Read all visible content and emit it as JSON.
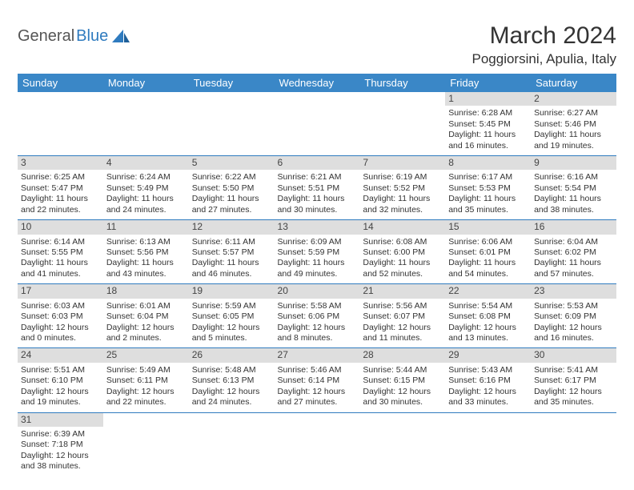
{
  "brand": {
    "general": "General",
    "blue": "Blue"
  },
  "title": "March 2024",
  "location": "Poggiorsini, Apulia, Italy",
  "colors": {
    "header_bg": "#3a87c7",
    "rule": "#2f7bbf",
    "daynum_bg": "#dedede",
    "text": "#333333",
    "logo_blue": "#2f7bbf",
    "logo_grey": "#555555"
  },
  "weekdays": [
    "Sunday",
    "Monday",
    "Tuesday",
    "Wednesday",
    "Thursday",
    "Friday",
    "Saturday"
  ],
  "weeks": [
    [
      null,
      null,
      null,
      null,
      null,
      {
        "n": "1",
        "sunrise": "6:28 AM",
        "sunset": "5:45 PM",
        "daylight": "11 hours and 16 minutes."
      },
      {
        "n": "2",
        "sunrise": "6:27 AM",
        "sunset": "5:46 PM",
        "daylight": "11 hours and 19 minutes."
      }
    ],
    [
      {
        "n": "3",
        "sunrise": "6:25 AM",
        "sunset": "5:47 PM",
        "daylight": "11 hours and 22 minutes."
      },
      {
        "n": "4",
        "sunrise": "6:24 AM",
        "sunset": "5:49 PM",
        "daylight": "11 hours and 24 minutes."
      },
      {
        "n": "5",
        "sunrise": "6:22 AM",
        "sunset": "5:50 PM",
        "daylight": "11 hours and 27 minutes."
      },
      {
        "n": "6",
        "sunrise": "6:21 AM",
        "sunset": "5:51 PM",
        "daylight": "11 hours and 30 minutes."
      },
      {
        "n": "7",
        "sunrise": "6:19 AM",
        "sunset": "5:52 PM",
        "daylight": "11 hours and 32 minutes."
      },
      {
        "n": "8",
        "sunrise": "6:17 AM",
        "sunset": "5:53 PM",
        "daylight": "11 hours and 35 minutes."
      },
      {
        "n": "9",
        "sunrise": "6:16 AM",
        "sunset": "5:54 PM",
        "daylight": "11 hours and 38 minutes."
      }
    ],
    [
      {
        "n": "10",
        "sunrise": "6:14 AM",
        "sunset": "5:55 PM",
        "daylight": "11 hours and 41 minutes."
      },
      {
        "n": "11",
        "sunrise": "6:13 AM",
        "sunset": "5:56 PM",
        "daylight": "11 hours and 43 minutes."
      },
      {
        "n": "12",
        "sunrise": "6:11 AM",
        "sunset": "5:57 PM",
        "daylight": "11 hours and 46 minutes."
      },
      {
        "n": "13",
        "sunrise": "6:09 AM",
        "sunset": "5:59 PM",
        "daylight": "11 hours and 49 minutes."
      },
      {
        "n": "14",
        "sunrise": "6:08 AM",
        "sunset": "6:00 PM",
        "daylight": "11 hours and 52 minutes."
      },
      {
        "n": "15",
        "sunrise": "6:06 AM",
        "sunset": "6:01 PM",
        "daylight": "11 hours and 54 minutes."
      },
      {
        "n": "16",
        "sunrise": "6:04 AM",
        "sunset": "6:02 PM",
        "daylight": "11 hours and 57 minutes."
      }
    ],
    [
      {
        "n": "17",
        "sunrise": "6:03 AM",
        "sunset": "6:03 PM",
        "daylight": "12 hours and 0 minutes."
      },
      {
        "n": "18",
        "sunrise": "6:01 AM",
        "sunset": "6:04 PM",
        "daylight": "12 hours and 2 minutes."
      },
      {
        "n": "19",
        "sunrise": "5:59 AM",
        "sunset": "6:05 PM",
        "daylight": "12 hours and 5 minutes."
      },
      {
        "n": "20",
        "sunrise": "5:58 AM",
        "sunset": "6:06 PM",
        "daylight": "12 hours and 8 minutes."
      },
      {
        "n": "21",
        "sunrise": "5:56 AM",
        "sunset": "6:07 PM",
        "daylight": "12 hours and 11 minutes."
      },
      {
        "n": "22",
        "sunrise": "5:54 AM",
        "sunset": "6:08 PM",
        "daylight": "12 hours and 13 minutes."
      },
      {
        "n": "23",
        "sunrise": "5:53 AM",
        "sunset": "6:09 PM",
        "daylight": "12 hours and 16 minutes."
      }
    ],
    [
      {
        "n": "24",
        "sunrise": "5:51 AM",
        "sunset": "6:10 PM",
        "daylight": "12 hours and 19 minutes."
      },
      {
        "n": "25",
        "sunrise": "5:49 AM",
        "sunset": "6:11 PM",
        "daylight": "12 hours and 22 minutes."
      },
      {
        "n": "26",
        "sunrise": "5:48 AM",
        "sunset": "6:13 PM",
        "daylight": "12 hours and 24 minutes."
      },
      {
        "n": "27",
        "sunrise": "5:46 AM",
        "sunset": "6:14 PM",
        "daylight": "12 hours and 27 minutes."
      },
      {
        "n": "28",
        "sunrise": "5:44 AM",
        "sunset": "6:15 PM",
        "daylight": "12 hours and 30 minutes."
      },
      {
        "n": "29",
        "sunrise": "5:43 AM",
        "sunset": "6:16 PM",
        "daylight": "12 hours and 33 minutes."
      },
      {
        "n": "30",
        "sunrise": "5:41 AM",
        "sunset": "6:17 PM",
        "daylight": "12 hours and 35 minutes."
      }
    ],
    [
      {
        "n": "31",
        "sunrise": "6:39 AM",
        "sunset": "7:18 PM",
        "daylight": "12 hours and 38 minutes."
      },
      null,
      null,
      null,
      null,
      null,
      null
    ]
  ],
  "labels": {
    "sunrise": "Sunrise:",
    "sunset": "Sunset:",
    "daylight": "Daylight:"
  }
}
